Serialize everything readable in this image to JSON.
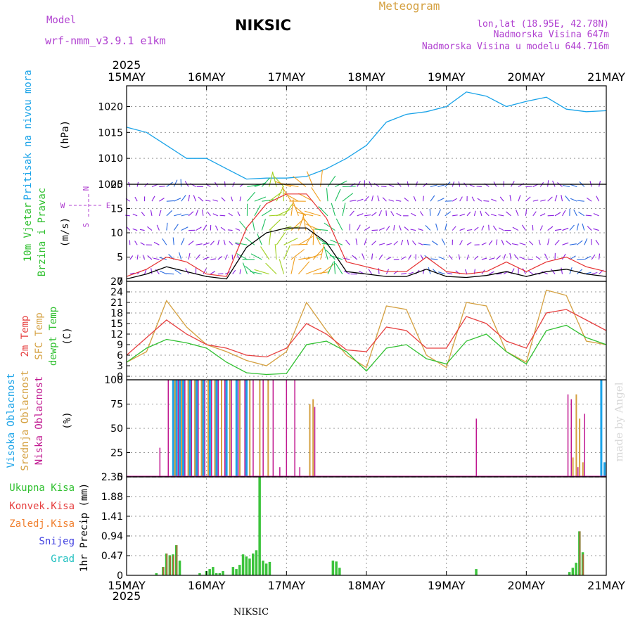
{
  "header": {
    "model_label": "Model",
    "model_version": "wrf-nmm_v3.9.1 e1km",
    "station": "NIKSIC",
    "product": "Meteogram",
    "lonlat": "lon,lat (18.95E, 42.78N)",
    "elevation": "Nadmorska Visina 647m",
    "model_elevation": "Nadmorska Visina u modelu 644.716m",
    "watermark": "made by Angel",
    "footer": "NIKSIC"
  },
  "colors": {
    "pressure": "#1aa3e8",
    "wind_speed": "#000000",
    "wind_gust": "#e63030",
    "temp_2m": "#e64040",
    "temp_sfc": "#d4a040",
    "temp_dew": "#30c030",
    "cloud_high": "#1aa3e8",
    "cloud_mid": "#d4a040",
    "cloud_low": "#c01890",
    "precip_total": "#30c030",
    "precip_conv": "#e64040",
    "precip_frozen": "#f08030",
    "precip_snow": "#4040e0",
    "precip_graupel": "#20c0c0",
    "panel_label_purple": "#b040d0"
  },
  "chart_data": [
    {
      "type": "line",
      "panel": "pressure",
      "ylabel": [
        "Pritisak na nivou mora",
        "(hPa)"
      ],
      "ylim": [
        1005,
        1024
      ],
      "yticks": [
        1005,
        1010,
        1015,
        1020
      ],
      "x_hours": [
        0,
        6,
        12,
        18,
        24,
        30,
        36,
        42,
        48,
        54,
        60,
        66,
        72,
        78,
        84,
        90,
        96,
        102,
        108,
        114,
        120,
        126,
        132,
        138,
        144
      ],
      "series": [
        {
          "values": [
            1016,
            1015,
            1012.5,
            1010,
            1010,
            1008,
            1006,
            1006.2,
            1006.2,
            1006.5,
            1008,
            1010,
            1012.5,
            1017,
            1018.5,
            1019,
            1020,
            1022.8,
            1022,
            1020,
            1021,
            1021.8,
            1019.5,
            1019,
            1019.2
          ]
        }
      ],
      "grid": true
    },
    {
      "type": "line",
      "panel": "wind",
      "ylabel": [
        "10m Vjetar",
        "Brzina i Pravac",
        "(m/s)"
      ],
      "direction_legend": [
        "N",
        "E",
        "S",
        "W"
      ],
      "ylim": [
        0,
        20
      ],
      "yticks": [
        0,
        5,
        10,
        15,
        20
      ],
      "x_hours": [
        0,
        6,
        12,
        18,
        24,
        30,
        36,
        42,
        48,
        54,
        60,
        66,
        72,
        78,
        84,
        90,
        96,
        102,
        108,
        114,
        120,
        126,
        132,
        138,
        144
      ],
      "series": [
        {
          "name": "speed",
          "values": [
            0.5,
            1.5,
            3,
            2,
            1,
            0.5,
            7,
            10,
            11,
            11,
            8,
            2,
            1.5,
            1,
            1,
            2.5,
            1,
            0.8,
            1.2,
            2,
            1,
            2,
            2.5,
            1.5,
            1
          ]
        },
        {
          "name": "gust",
          "values": [
            1,
            2.5,
            5,
            4,
            1.5,
            1,
            11,
            16,
            18,
            18,
            13,
            4,
            3,
            2,
            2,
            5,
            2,
            1.5,
            2,
            4,
            2,
            4,
            5,
            3,
            2
          ]
        }
      ],
      "barb_rows": [
        1.5,
        4.5,
        7.5,
        10.5,
        13.5,
        16.5,
        19.5
      ],
      "grid": true
    },
    {
      "type": "line",
      "panel": "temperature",
      "ylabel": [
        "2m Temp",
        "SFC Temp",
        "dewpt Temp",
        "(C)"
      ],
      "ylim": [
        -1,
        27
      ],
      "yticks": [
        0,
        3,
        6,
        9,
        12,
        15,
        18,
        21,
        24,
        27
      ],
      "x_hours": [
        0,
        6,
        12,
        18,
        24,
        30,
        36,
        42,
        48,
        54,
        60,
        66,
        72,
        78,
        84,
        90,
        96,
        102,
        108,
        114,
        120,
        126,
        132,
        138,
        144
      ],
      "series": [
        {
          "name": "2m Temp",
          "values": [
            6,
            11,
            16,
            12,
            9,
            8,
            6,
            5.5,
            8,
            15,
            12,
            7.5,
            7,
            14,
            13,
            8,
            8,
            17,
            15,
            10,
            8,
            18,
            19,
            16,
            13
          ]
        },
        {
          "name": "SFC Temp",
          "values": [
            4,
            7,
            21.5,
            14,
            9,
            7,
            4.5,
            3,
            7,
            21,
            13,
            6,
            2.5,
            20,
            19,
            6,
            2.5,
            21,
            20,
            7,
            4,
            24.5,
            23,
            10,
            9
          ]
        },
        {
          "name": "dewpt Temp",
          "values": [
            4,
            8,
            10.5,
            9.5,
            8,
            4,
            1,
            0.5,
            0.8,
            9,
            10,
            7,
            1.5,
            8,
            9,
            5,
            3.5,
            10,
            12,
            7,
            3.5,
            13,
            14.5,
            11,
            9
          ]
        }
      ],
      "grid": true
    },
    {
      "type": "bar",
      "panel": "clouds",
      "ylabel": [
        "Visoka Oblacnost",
        "Srednja Oblacnost",
        "Niska Oblacnost",
        "(%)"
      ],
      "ylim": [
        0,
        100
      ],
      "yticks": [
        0,
        25,
        50,
        75,
        100
      ],
      "series": [
        {
          "name": "Visoka Oblacnost",
          "bars": [
            [
              14,
              100
            ],
            [
              15,
              100
            ],
            [
              16,
              100
            ],
            [
              17,
              100
            ],
            [
              19,
              100
            ],
            [
              21,
              100
            ],
            [
              23,
              100
            ],
            [
              25,
              100
            ],
            [
              27,
              100
            ],
            [
              30,
              100
            ],
            [
              33,
              100
            ],
            [
              36,
              100
            ],
            [
              142.5,
              100
            ],
            [
              143.5,
              15
            ]
          ]
        },
        {
          "name": "Srednja Oblacnost",
          "bars": [
            [
              14.5,
              100
            ],
            [
              16.5,
              100
            ],
            [
              18.5,
              100
            ],
            [
              20.5,
              100
            ],
            [
              22.5,
              100
            ],
            [
              24.5,
              100
            ],
            [
              26.5,
              100
            ],
            [
              28.5,
              100
            ],
            [
              31,
              100
            ],
            [
              34,
              100
            ],
            [
              37,
              100
            ],
            [
              40,
              100
            ],
            [
              42.5,
              100
            ],
            [
              55,
              75
            ],
            [
              56,
              80
            ],
            [
              134,
              20
            ],
            [
              135,
              85
            ],
            [
              136,
              60
            ],
            [
              137,
              15
            ]
          ]
        },
        {
          "name": "Niska Oblacnost",
          "bars": [
            [
              10,
              30
            ],
            [
              12.5,
              100
            ],
            [
              15.5,
              100
            ],
            [
              17.5,
              100
            ],
            [
              19.5,
              100
            ],
            [
              21.5,
              100
            ],
            [
              23.5,
              100
            ],
            [
              25.5,
              100
            ],
            [
              27.5,
              100
            ],
            [
              29.5,
              100
            ],
            [
              31.5,
              100
            ],
            [
              33.5,
              100
            ],
            [
              35.5,
              100
            ],
            [
              38,
              100
            ],
            [
              41,
              100
            ],
            [
              44,
              100
            ],
            [
              46,
              10
            ],
            [
              48,
              100
            ],
            [
              50.5,
              100
            ],
            [
              52,
              10
            ],
            [
              56.5,
              72
            ],
            [
              105,
              60
            ],
            [
              132.5,
              85
            ],
            [
              133.5,
              80
            ],
            [
              135.5,
              10
            ],
            [
              137.5,
              65
            ]
          ]
        }
      ],
      "grid": true
    },
    {
      "type": "bar",
      "panel": "precip",
      "ylabel": [
        "1hr Precip (mm)"
      ],
      "legend": [
        "Ukupna Kisa",
        "Konvek.Kisa",
        "Zaledj.Kisa",
        "Snijeg",
        "Grad"
      ],
      "ylim": [
        0,
        2.35
      ],
      "yticks": [
        0,
        0.47,
        0.94,
        1.41,
        1.88,
        2.35
      ],
      "series": [
        {
          "name": "Ukupna Kisa",
          "bars": [
            [
              9,
              0.05
            ],
            [
              11,
              0.2
            ],
            [
              12,
              0.52
            ],
            [
              13,
              0.48
            ],
            [
              14,
              0.5
            ],
            [
              15,
              0.72
            ],
            [
              16,
              0.35
            ],
            [
              22,
              0.05
            ],
            [
              24,
              0.1
            ],
            [
              25,
              0.15
            ],
            [
              26,
              0.2
            ],
            [
              27,
              0.05
            ],
            [
              28,
              0.05
            ],
            [
              29,
              0.1
            ],
            [
              32,
              0.2
            ],
            [
              33,
              0.15
            ],
            [
              34,
              0.25
            ],
            [
              35,
              0.5
            ],
            [
              36,
              0.45
            ],
            [
              37,
              0.4
            ],
            [
              38,
              0.52
            ],
            [
              39,
              0.6
            ],
            [
              40,
              2.35
            ],
            [
              41,
              0.35
            ],
            [
              42,
              0.28
            ],
            [
              43,
              0.32
            ],
            [
              62,
              0.35
            ],
            [
              63,
              0.33
            ],
            [
              64,
              0.18
            ],
            [
              105,
              0.15
            ],
            [
              133,
              0.08
            ],
            [
              134,
              0.18
            ],
            [
              135,
              0.3
            ],
            [
              136,
              1.05
            ],
            [
              137,
              0.55
            ]
          ]
        },
        {
          "name": "Konvek.Kisa",
          "bars": [
            [
              11,
              0.2
            ],
            [
              12,
              0.52
            ],
            [
              13,
              0.45
            ],
            [
              14,
              0.48
            ],
            [
              15,
              0.72
            ],
            [
              136,
              1.05
            ],
            [
              137,
              0.5
            ]
          ]
        }
      ],
      "grid": true
    }
  ],
  "time_axis": {
    "year": "2025",
    "labels": [
      "15MAY",
      "16MAY",
      "17MAY",
      "18MAY",
      "19MAY",
      "20MAY",
      "21MAY"
    ],
    "range_hours": [
      0,
      144
    ]
  }
}
